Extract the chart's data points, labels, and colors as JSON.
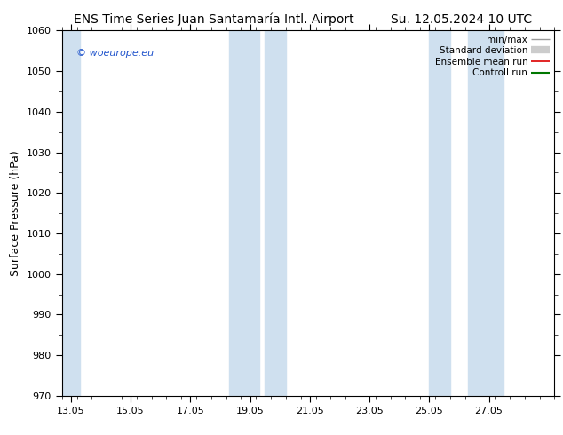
{
  "title_left": "ENS Time Series Juan Santamaría Intl. Airport",
  "title_right": "Su. 12.05.2024 10 UTC",
  "ylabel": "Surface Pressure (hPa)",
  "ylim": [
    970,
    1060
  ],
  "yticks": [
    970,
    980,
    990,
    1000,
    1010,
    1020,
    1030,
    1040,
    1050,
    1060
  ],
  "xlim": [
    12.7,
    28.5
  ],
  "xtick_positions": [
    13,
    15,
    17,
    19,
    21,
    23,
    25,
    27
  ],
  "xtick_labels": [
    "13.05",
    "15.05",
    "17.05",
    "19.05",
    "21.05",
    "23.05",
    "25.05",
    "27.05"
  ],
  "shaded_bands": [
    {
      "start": 12.7,
      "end": 13.3
    },
    {
      "start": 18.3,
      "end": 19.3
    },
    {
      "start": 19.5,
      "end": 20.2
    },
    {
      "start": 25.0,
      "end": 25.7
    },
    {
      "start": 26.3,
      "end": 27.5
    }
  ],
  "band_color": "#cfe0ef",
  "background_color": "#ffffff",
  "watermark": "© woeurope.eu",
  "legend_items": [
    {
      "label": "min/max",
      "color": "#999999",
      "lw": 1.0,
      "type": "line"
    },
    {
      "label": "Standard deviation",
      "color": "#cccccc",
      "lw": 6.0,
      "type": "line"
    },
    {
      "label": "Ensemble mean run",
      "color": "#dd0000",
      "lw": 1.2,
      "type": "line"
    },
    {
      "label": "Controll run",
      "color": "#007700",
      "lw": 1.5,
      "type": "line"
    }
  ],
  "title_fontsize": 10,
  "axis_label_fontsize": 9,
  "tick_fontsize": 8,
  "watermark_fontsize": 8,
  "legend_fontsize": 7.5
}
